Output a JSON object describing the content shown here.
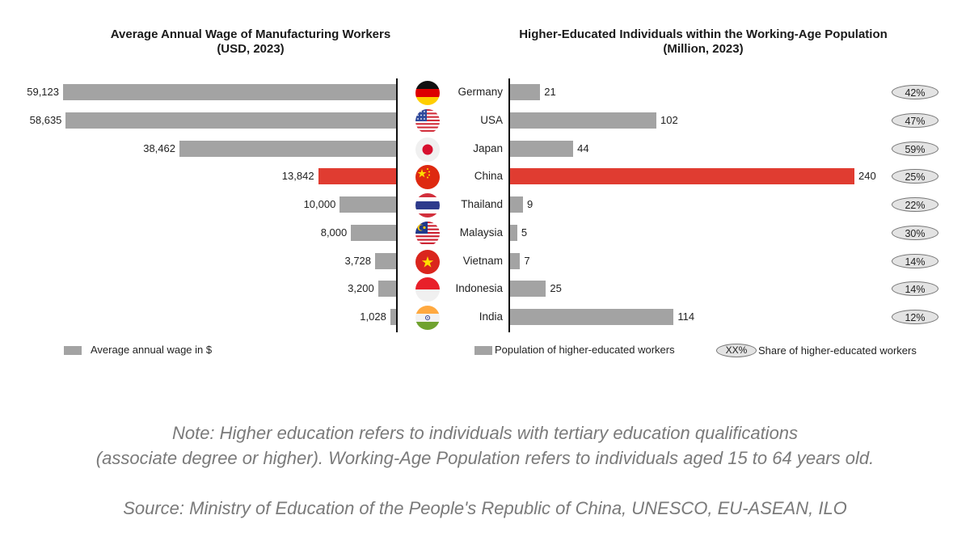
{
  "titles": {
    "left_line1": "Average Annual Wage of Manufacturing Workers",
    "left_line2": "(USD, 2023)",
    "right_line1": "Higher-Educated Individuals within the Working-Age Population",
    "right_line2": "(Million, 2023)"
  },
  "colors": {
    "default_bar": "#a3a3a3",
    "highlight_bar": "#e03c31",
    "oval_fill": "#e3e3e3",
    "note_text": "#7a7a7a"
  },
  "rows": [
    {
      "country": "Germany",
      "flag": "germany-flag-icon",
      "wage": 59123,
      "wage_label": "59,123",
      "pop": 21,
      "pop_label": "21",
      "share": "42%",
      "highlight": false
    },
    {
      "country": "USA",
      "flag": "usa-flag-icon",
      "wage": 58635,
      "wage_label": "58,635",
      "pop": 102,
      "pop_label": "102",
      "share": "47%",
      "highlight": false
    },
    {
      "country": "Japan",
      "flag": "japan-flag-icon",
      "wage": 38462,
      "wage_label": "38,462",
      "pop": 44,
      "pop_label": "44",
      "share": "59%",
      "highlight": false
    },
    {
      "country": "China",
      "flag": "china-flag-icon",
      "wage": 13842,
      "wage_label": "13,842",
      "pop": 240,
      "pop_label": "240",
      "share": "25%",
      "highlight": true
    },
    {
      "country": "Thailand",
      "flag": "thailand-flag-icon",
      "wage": 10000,
      "wage_label": "10,000",
      "pop": 9,
      "pop_label": "9",
      "share": "22%",
      "highlight": false
    },
    {
      "country": "Malaysia",
      "flag": "malaysia-flag-icon",
      "wage": 8000,
      "wage_label": "8,000",
      "pop": 5,
      "pop_label": "5",
      "share": "30%",
      "highlight": false
    },
    {
      "country": "Vietnam",
      "flag": "vietnam-flag-icon",
      "wage": 3728,
      "wage_label": "3,728",
      "pop": 7,
      "pop_label": "7",
      "share": "14%",
      "highlight": false
    },
    {
      "country": "Indonesia",
      "flag": "indonesia-flag-icon",
      "wage": 3200,
      "wage_label": "3,200",
      "pop": 25,
      "pop_label": "25",
      "share": "14%",
      "highlight": false
    },
    {
      "country": "India",
      "flag": "india-flag-icon",
      "wage": 1028,
      "wage_label": "1,028",
      "pop": 114,
      "pop_label": "114",
      "share": "12%",
      "highlight": false
    }
  ],
  "legend": {
    "wage": "Average annual wage in $",
    "population": "Population of higher-educated workers",
    "share_oval": "XX%",
    "share": "Share of higher-educated workers"
  },
  "footer": {
    "note_line1": "Note: Higher education refers to individuals with tertiary education qualifications",
    "note_line2": "(associate degree or higher). Working-Age Population refers to individuals aged 15 to 64 years old.",
    "source": "Source: Ministry of Education of the People's Republic of China, UNESCO, EU-ASEAN, ILO"
  },
  "chart_data": [
    {
      "type": "bar",
      "orientation": "horizontal",
      "title": "Average Annual Wage of Manufacturing Workers (USD, 2023)",
      "categories": [
        "Germany",
        "USA",
        "Japan",
        "China",
        "Thailand",
        "Malaysia",
        "Vietnam",
        "Indonesia",
        "India"
      ],
      "series": [
        {
          "name": "Average annual wage in $",
          "values": [
            59123,
            58635,
            38462,
            13842,
            10000,
            8000,
            3728,
            3200,
            1028
          ]
        }
      ],
      "highlight": "China",
      "xlabel": "",
      "ylabel": "",
      "direction": "right-to-left",
      "grid": false,
      "legend_position": "bottom-left"
    },
    {
      "type": "bar",
      "orientation": "horizontal",
      "title": "Higher-Educated Individuals within the Working-Age Population (Million, 2023)",
      "categories": [
        "Germany",
        "USA",
        "Japan",
        "China",
        "Thailand",
        "Malaysia",
        "Vietnam",
        "Indonesia",
        "India"
      ],
      "series": [
        {
          "name": "Population of higher-educated workers",
          "values": [
            21,
            102,
            44,
            240,
            9,
            5,
            7,
            25,
            114
          ]
        },
        {
          "name": "Share of higher-educated workers",
          "values": [
            42,
            47,
            59,
            25,
            22,
            30,
            14,
            14,
            12
          ],
          "unit": "%"
        }
      ],
      "highlight": "China",
      "xlabel": "",
      "ylabel": "",
      "grid": false,
      "legend_position": "bottom-right"
    }
  ]
}
